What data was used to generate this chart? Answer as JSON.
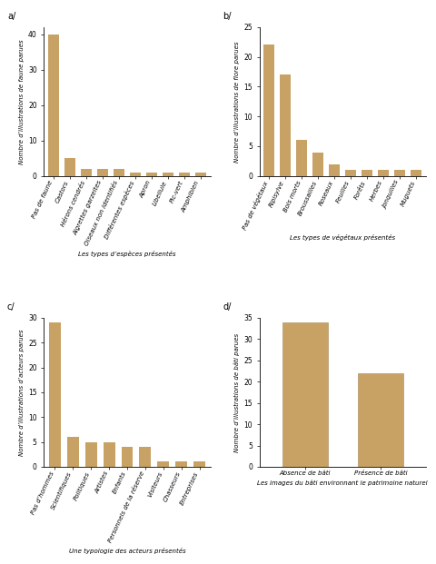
{
  "bar_color": "#C8A265",
  "a": {
    "label": "a/",
    "categories": [
      "Pas de faune",
      "Castors",
      "Hérons cendrés",
      "Aigrettes garzeltes",
      "Oiseaux non identifiés",
      "Différentes espèces",
      "Apron",
      "Libellule",
      "Pic-vert",
      "Amphibien"
    ],
    "values": [
      40,
      5,
      2,
      2,
      2,
      1,
      1,
      1,
      1,
      1
    ],
    "ylabel": "Nombre d’illustrations de faune parues",
    "xlabel": "Les types d’espèces présentés",
    "ylim": [
      0,
      42
    ],
    "yticks": [
      0,
      10,
      20,
      30,
      40
    ]
  },
  "b": {
    "label": "b/",
    "categories": [
      "Pas de végétaux",
      "Ripisylve",
      "Bois morts",
      "Broussailles",
      "Roseaux",
      "Feuilles",
      "Forêts",
      "Herbes",
      "Jonquilles",
      "Muguets"
    ],
    "values": [
      22,
      17,
      6,
      4,
      2,
      1,
      1,
      1,
      1,
      1
    ],
    "ylabel": "Nombre d’illustrations de flore parues",
    "xlabel": "Les types de végétaux présentés",
    "ylim": [
      0,
      25
    ],
    "yticks": [
      0,
      5,
      10,
      15,
      20,
      25
    ]
  },
  "c": {
    "label": "c/",
    "categories": [
      "Pas d’hommes",
      "Scientifiques",
      "Politiques",
      "Artistes",
      "Enfants",
      "Personnels de la réserve",
      "Visiteurs",
      "Chasseurs",
      "Entreprises"
    ],
    "values": [
      29,
      6,
      5,
      5,
      4,
      4,
      1,
      1,
      1
    ],
    "ylabel": "Nombre d’illustrations d’acteurs parues",
    "xlabel": "Une typologie des acteurs présentés",
    "ylim": [
      0,
      30
    ],
    "yticks": [
      0,
      5,
      10,
      15,
      20,
      25,
      30
    ]
  },
  "d": {
    "label": "d/",
    "categories": [
      "Absence de bâti",
      "Présence de bâti"
    ],
    "values": [
      34,
      22
    ],
    "ylabel": "Nombre d’illustrations de bâti parues",
    "xlabel": "Les images du bâti environnant le patrimoine naturel",
    "ylim": [
      0,
      35
    ],
    "yticks": [
      0,
      5,
      10,
      15,
      20,
      25,
      30,
      35
    ]
  }
}
